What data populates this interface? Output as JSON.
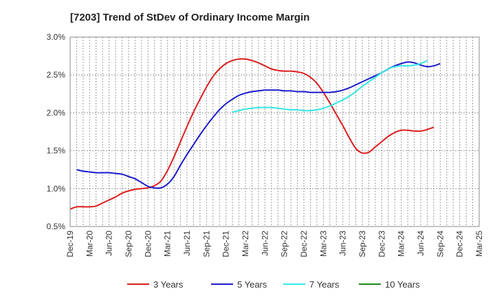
{
  "chart_data": {
    "type": "line",
    "title": "[7203]  Trend of StDev of Ordinary Income Margin",
    "xlabel": "",
    "ylabel": "",
    "ylim": [
      0.5,
      3.0
    ],
    "yticks": [
      0.5,
      1.0,
      1.5,
      2.0,
      2.5,
      3.0
    ],
    "ytick_labels": [
      "0.5%",
      "1.0%",
      "1.5%",
      "2.0%",
      "2.5%",
      "3.0%"
    ],
    "x_categories": [
      "Dec-19",
      "Mar-20",
      "Jun-20",
      "Sep-20",
      "Dec-20",
      "Mar-21",
      "Jun-21",
      "Sep-21",
      "Dec-21",
      "Mar-22",
      "Jun-22",
      "Sep-22",
      "Dec-22",
      "Mar-23",
      "Jun-23",
      "Sep-23",
      "Dec-23",
      "Mar-24",
      "Jun-24",
      "Sep-24",
      "Dec-24",
      "Mar-25"
    ],
    "grid": true,
    "legend_position": "bottom",
    "series": [
      {
        "name": "3 Years",
        "color": "#dd1c1c",
        "start_index": 0,
        "values": [
          0.73,
          0.76,
          0.76,
          0.76,
          0.77,
          0.81,
          0.85,
          0.89,
          0.94,
          0.97,
          0.99,
          1.0,
          1.01,
          1.04,
          1.1,
          1.24,
          1.42,
          1.62,
          1.82,
          2.01,
          2.18,
          2.34,
          2.48,
          2.58,
          2.65,
          2.69,
          2.71,
          2.71,
          2.69,
          2.66,
          2.62,
          2.58,
          2.56,
          2.55,
          2.55,
          2.54,
          2.52,
          2.47,
          2.39,
          2.27,
          2.13,
          1.98,
          1.83,
          1.67,
          1.53,
          1.47,
          1.48,
          1.55,
          1.62,
          1.69,
          1.74,
          1.77,
          1.77,
          1.76,
          1.76,
          1.78,
          1.81
        ]
      },
      {
        "name": "5 Years",
        "color": "#1a1acc",
        "start_index": 1,
        "values": [
          1.25,
          1.23,
          1.22,
          1.21,
          1.21,
          1.21,
          1.2,
          1.19,
          1.16,
          1.13,
          1.08,
          1.03,
          1.01,
          1.01,
          1.06,
          1.16,
          1.31,
          1.45,
          1.58,
          1.71,
          1.83,
          1.94,
          2.04,
          2.12,
          2.18,
          2.23,
          2.26,
          2.28,
          2.29,
          2.3,
          2.3,
          2.3,
          2.29,
          2.29,
          2.28,
          2.28,
          2.27,
          2.27,
          2.27,
          2.27,
          2.28,
          2.3,
          2.33,
          2.37,
          2.41,
          2.45,
          2.49,
          2.53,
          2.58,
          2.62,
          2.65,
          2.67,
          2.66,
          2.63,
          2.61,
          2.62,
          2.65
        ]
      },
      {
        "name": "7 Years",
        "color": "#33e6e6",
        "start_index": 25,
        "values": [
          2.01,
          2.03,
          2.05,
          2.06,
          2.07,
          2.07,
          2.07,
          2.06,
          2.05,
          2.04,
          2.04,
          2.03,
          2.03,
          2.04,
          2.06,
          2.09,
          2.13,
          2.17,
          2.22,
          2.28,
          2.35,
          2.41,
          2.47,
          2.53,
          2.58,
          2.61,
          2.62,
          2.62,
          2.63,
          2.65,
          2.69
        ]
      },
      {
        "name": "10 Years",
        "color": "#1a8a1a",
        "start_index": 0,
        "values": []
      }
    ]
  }
}
